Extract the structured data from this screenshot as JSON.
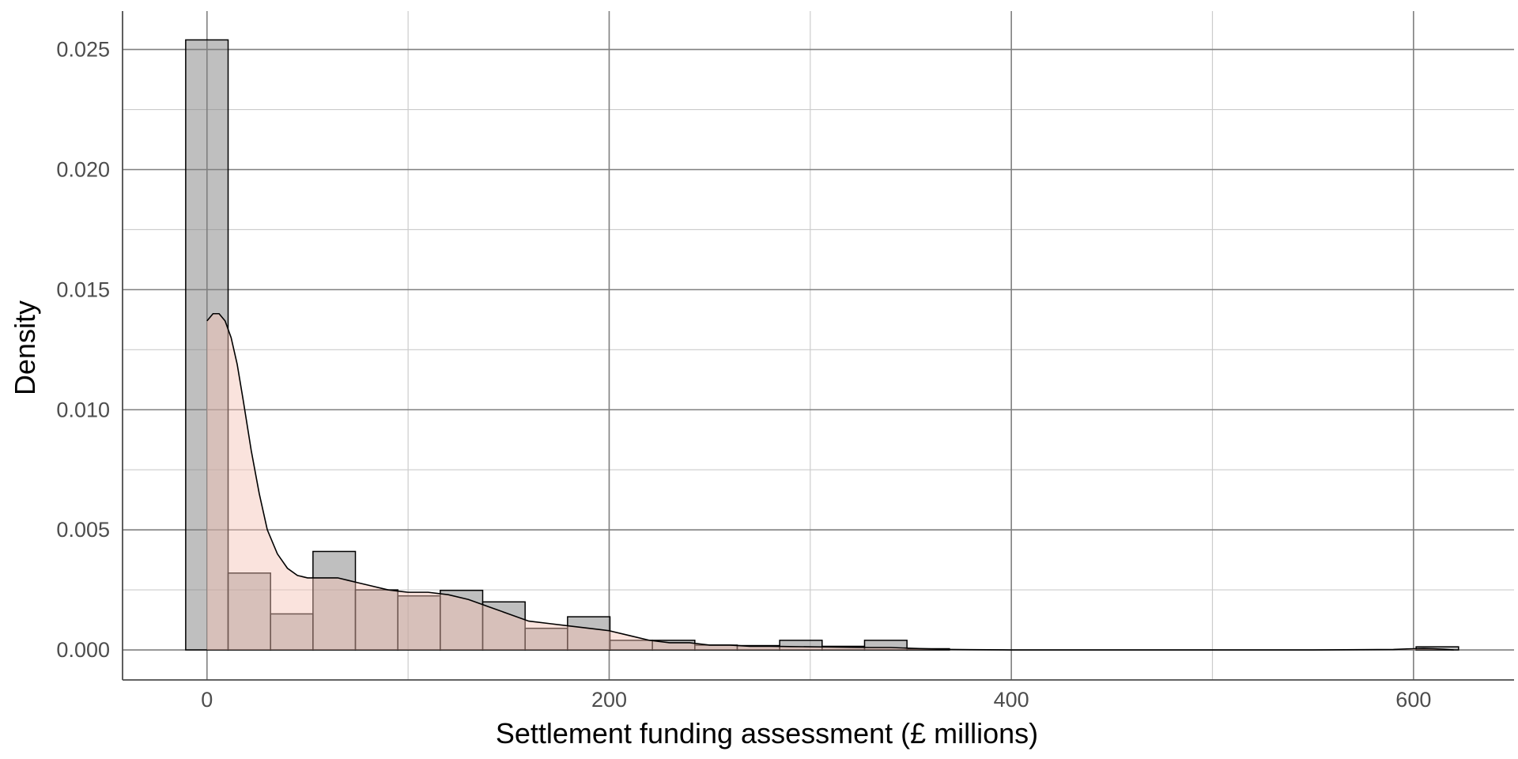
{
  "chart_data": {
    "type": "histogram",
    "title": "",
    "xlabel": "Settlement funding assessment (£ millions)",
    "ylabel": "Density",
    "xlim": [
      -42,
      650
    ],
    "ylim": [
      -0.00125,
      0.0266
    ],
    "x_ticks": [
      0,
      200,
      400,
      600
    ],
    "y_ticks": [
      0.0,
      0.005,
      0.01,
      0.015,
      0.02,
      0.025
    ],
    "x_tick_labels": [
      "0",
      "200",
      "400",
      "600"
    ],
    "y_tick_labels": [
      "0.000",
      "0.005",
      "0.010",
      "0.015",
      "0.020",
      "0.025"
    ],
    "grid": true,
    "bin_width": 21.1,
    "bins": [
      {
        "x0": -10.6,
        "x1": 10.5,
        "density": 0.0254
      },
      {
        "x0": 10.5,
        "x1": 31.6,
        "density": 0.0032
      },
      {
        "x0": 31.6,
        "x1": 52.7,
        "density": 0.0015
      },
      {
        "x0": 52.7,
        "x1": 73.8,
        "density": 0.0041
      },
      {
        "x0": 73.8,
        "x1": 94.9,
        "density": 0.0025
      },
      {
        "x0": 94.9,
        "x1": 116.0,
        "density": 0.00225
      },
      {
        "x0": 116.0,
        "x1": 137.1,
        "density": 0.00248
      },
      {
        "x0": 137.1,
        "x1": 158.2,
        "density": 0.002
      },
      {
        "x0": 158.2,
        "x1": 179.3,
        "density": 0.0009
      },
      {
        "x0": 179.3,
        "x1": 200.4,
        "density": 0.00138
      },
      {
        "x0": 200.4,
        "x1": 221.5,
        "density": 0.0004
      },
      {
        "x0": 221.5,
        "x1": 242.6,
        "density": 0.0004
      },
      {
        "x0": 242.6,
        "x1": 263.7,
        "density": 0.0002
      },
      {
        "x0": 263.7,
        "x1": 284.8,
        "density": 0.00018
      },
      {
        "x0": 284.8,
        "x1": 305.9,
        "density": 0.0004
      },
      {
        "x0": 305.9,
        "x1": 327.0,
        "density": 0.00015
      },
      {
        "x0": 327.0,
        "x1": 348.1,
        "density": 0.0004
      },
      {
        "x0": 348.1,
        "x1": 369.2,
        "density": 5e-05
      },
      {
        "x0": 369.2,
        "x1": 390.3,
        "density": 0.0
      },
      {
        "x0": 390.3,
        "x1": 411.4,
        "density": 0.0
      },
      {
        "x0": 411.4,
        "x1": 432.5,
        "density": 0.0
      },
      {
        "x0": 432.5,
        "x1": 453.6,
        "density": 0.0
      },
      {
        "x0": 453.6,
        "x1": 474.7,
        "density": 0.0
      },
      {
        "x0": 474.7,
        "x1": 495.8,
        "density": 0.0
      },
      {
        "x0": 495.8,
        "x1": 516.9,
        "density": 0.0
      },
      {
        "x0": 516.9,
        "x1": 538.0,
        "density": 0.0
      },
      {
        "x0": 538.0,
        "x1": 559.1,
        "density": 0.0
      },
      {
        "x0": 559.1,
        "x1": 580.2,
        "density": 0.0
      },
      {
        "x0": 580.2,
        "x1": 601.3,
        "density": 0.0
      },
      {
        "x0": 601.3,
        "x1": 622.4,
        "density": 0.00013
      }
    ],
    "density_curve": {
      "x": [
        0,
        3,
        6,
        9,
        12,
        15,
        18,
        22,
        26,
        30,
        35,
        40,
        45,
        50,
        55,
        60,
        65,
        70,
        75,
        80,
        90,
        100,
        110,
        120,
        130,
        140,
        150,
        160,
        170,
        180,
        190,
        200,
        210,
        220,
        230,
        240,
        250,
        260,
        270,
        280,
        290,
        300,
        310,
        320,
        330,
        340,
        350,
        360,
        370,
        380,
        400,
        450,
        500,
        550,
        590,
        600,
        605,
        610,
        615,
        620
      ],
      "y": [
        0.0137,
        0.014,
        0.014,
        0.0137,
        0.013,
        0.0119,
        0.0104,
        0.0083,
        0.0065,
        0.005,
        0.004,
        0.0034,
        0.0031,
        0.003,
        0.003,
        0.003,
        0.003,
        0.0029,
        0.0028,
        0.0027,
        0.0025,
        0.0024,
        0.0024,
        0.0023,
        0.0021,
        0.0018,
        0.0015,
        0.0012,
        0.0011,
        0.001,
        0.0009,
        0.0008,
        0.0006,
        0.0004,
        0.0003,
        0.0003,
        0.0002,
        0.0002,
        0.00015,
        0.00015,
        0.00014,
        0.00013,
        0.00012,
        0.00011,
        0.0001,
        0.0001,
        7e-05,
        4e-05,
        2e-05,
        1e-05,
        0.0,
        0.0,
        0.0,
        0.0,
        2e-05,
        5e-05,
        6e-05,
        5e-05,
        3e-05,
        0.0
      ]
    },
    "colors": {
      "histogram_fill": "#808080",
      "histogram_fill_opacity": 0.5,
      "bar_stroke": "#000000",
      "density_fill": "#f4c2b4",
      "density_fill_opacity": 0.45,
      "curve_stroke": "#000000",
      "grid_major": "#7f7f7f",
      "grid_minor": "#cccccc",
      "axis_line": "#4d4d4d"
    }
  }
}
